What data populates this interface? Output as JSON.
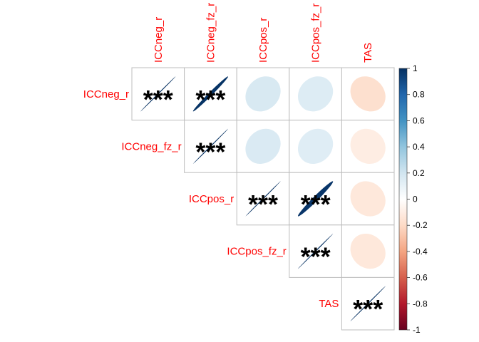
{
  "chart_data": {
    "type": "heatmap",
    "subtype": "correlation-upper-ellipse",
    "variables": [
      "ICCneg_r",
      "ICCneg_fz_r",
      "ICCpos_r",
      "ICCpos_fz_r",
      "TAS"
    ],
    "matrix": [
      [
        1.0,
        0.99,
        0.17,
        0.15,
        -0.17
      ],
      [
        0.99,
        1.0,
        0.16,
        0.14,
        -0.1
      ],
      [
        0.17,
        0.16,
        1.0,
        0.98,
        -0.13
      ],
      [
        0.15,
        0.14,
        0.98,
        1.0,
        -0.13
      ],
      [
        -0.17,
        -0.1,
        -0.13,
        -0.13,
        1.0
      ]
    ],
    "significance": [
      [
        "***",
        "***",
        "",
        "",
        ""
      ],
      [
        "",
        "***",
        "",
        "",
        ""
      ],
      [
        "",
        "",
        "***",
        "***",
        ""
      ],
      [
        "",
        "",
        "",
        "***",
        ""
      ],
      [
        "",
        "",
        "",
        "",
        "***"
      ]
    ],
    "colorbar": {
      "range": [
        -1,
        1
      ],
      "ticks": [
        "1",
        "0.8",
        "0.6",
        "0.4",
        "0.2",
        "0",
        "-0.2",
        "-0.4",
        "-0.6",
        "-0.8",
        "-1"
      ]
    },
    "label_color": "#ff0000",
    "grid": true
  }
}
